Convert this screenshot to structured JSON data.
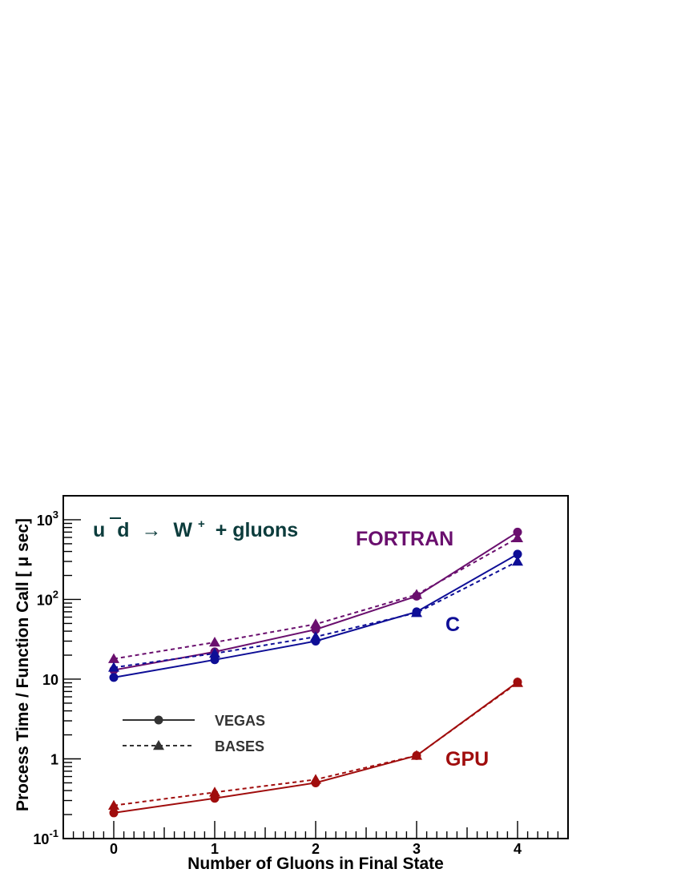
{
  "chart_data": {
    "type": "line",
    "title": "",
    "process_label": {
      "u": "u",
      "dbar": "d",
      "arrow": "→",
      "w": "W",
      "w_charge": "+",
      "rest": "+ gluons"
    },
    "xlabel": "Number of Gluons in Final State",
    "ylabel": "Process Time / Function Call [ μ sec]",
    "x": [
      0,
      1,
      2,
      3,
      4
    ],
    "x_tick_labels": [
      "0",
      "1",
      "2",
      "3",
      "4"
    ],
    "xlim": [
      -0.5,
      4.5
    ],
    "ylim": [
      0.1,
      2000
    ],
    "yscale": "log",
    "y_tick_labels": [
      {
        "value": 0.1,
        "base": "10",
        "exp": "-1"
      },
      {
        "value": 1,
        "base": "1",
        "exp": ""
      },
      {
        "value": 10,
        "base": "10",
        "exp": ""
      },
      {
        "value": 100,
        "base": "10",
        "exp": "2"
      },
      {
        "value": 1000,
        "base": "10",
        "exp": "3"
      }
    ],
    "groups": [
      {
        "label": "FORTRAN",
        "color": "#6a0f6e"
      },
      {
        "label": "C",
        "color": "#0e0e96"
      },
      {
        "label": "GPU",
        "color": "#a00d0d"
      }
    ],
    "series": [
      {
        "group": "FORTRAN",
        "method": "VEGAS",
        "color": "#6a0f6e",
        "marker": "circle",
        "dash": "solid",
        "values": [
          13,
          22,
          42,
          110,
          700
        ]
      },
      {
        "group": "FORTRAN",
        "method": "BASES",
        "color": "#6a0f6e",
        "marker": "triangle",
        "dash": "dashed",
        "values": [
          18,
          29,
          49,
          115,
          590
        ]
      },
      {
        "group": "C",
        "method": "VEGAS",
        "color": "#0e0e96",
        "marker": "circle",
        "dash": "solid",
        "values": [
          10.5,
          17.5,
          30,
          70,
          370
        ]
      },
      {
        "group": "C",
        "method": "BASES",
        "color": "#0e0e96",
        "marker": "triangle",
        "dash": "dashed",
        "values": [
          14,
          21,
          34,
          68,
          300
        ]
      },
      {
        "group": "GPU",
        "method": "VEGAS",
        "color": "#a00d0d",
        "marker": "circle",
        "dash": "solid",
        "values": [
          0.21,
          0.32,
          0.5,
          1.1,
          9.2
        ]
      },
      {
        "group": "GPU",
        "method": "BASES",
        "color": "#a00d0d",
        "marker": "triangle",
        "dash": "dashed",
        "values": [
          0.26,
          0.38,
          0.55,
          1.1,
          9.0
        ]
      }
    ],
    "legend": {
      "placement": "center-left",
      "entries": [
        {
          "label": "VEGAS",
          "marker": "circle",
          "dash": "solid",
          "color": "#333333"
        },
        {
          "label": "BASES",
          "marker": "triangle",
          "dash": "dashed",
          "color": "#333333"
        }
      ]
    },
    "grid": false
  }
}
